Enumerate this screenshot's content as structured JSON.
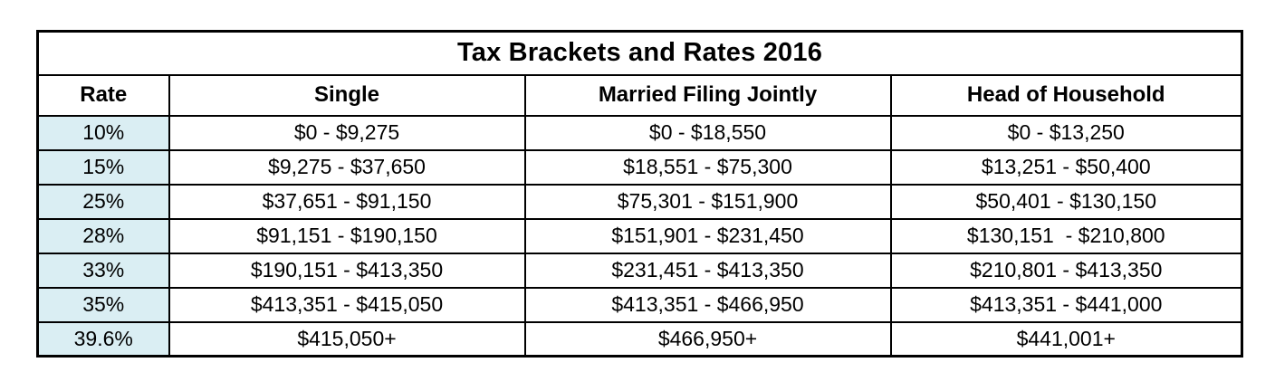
{
  "chart_data": {
    "type": "table",
    "title": "Tax Brackets and Rates 2016",
    "columns": [
      "Rate",
      "Single",
      "Married Filing Jointly",
      "Head of Household"
    ],
    "rows": [
      [
        "10%",
        "$0 - $9,275",
        "$0 - $18,550",
        "$0 - $13,250"
      ],
      [
        "15%",
        "$9,275 - $37,650",
        "$18,551 - $75,300",
        "$13,251 - $50,400"
      ],
      [
        "25%",
        "$37,651 - $91,150",
        "$75,301 - $151,900",
        "$50,401 - $130,150"
      ],
      [
        "28%",
        "$91,151 - $190,150",
        "$151,901 - $231,450",
        "$130,151  - $210,800"
      ],
      [
        "33%",
        "$190,151 - $413,350",
        "$231,451 - $413,350",
        "$210,801 - $413,350"
      ],
      [
        "35%",
        "$413,351 - $415,050",
        "$413,351 - $466,950",
        "$413,351 - $441,000"
      ],
      [
        "39.6%",
        "$415,050+",
        "$466,950+",
        "$441,001+"
      ]
    ],
    "layout": {
      "grid": "all-borders",
      "rate_column_highlighted": true
    }
  },
  "colors": {
    "rate_cell_bg": "#daeef3",
    "border": "#000000",
    "text": "#000000",
    "background": "#ffffff"
  }
}
